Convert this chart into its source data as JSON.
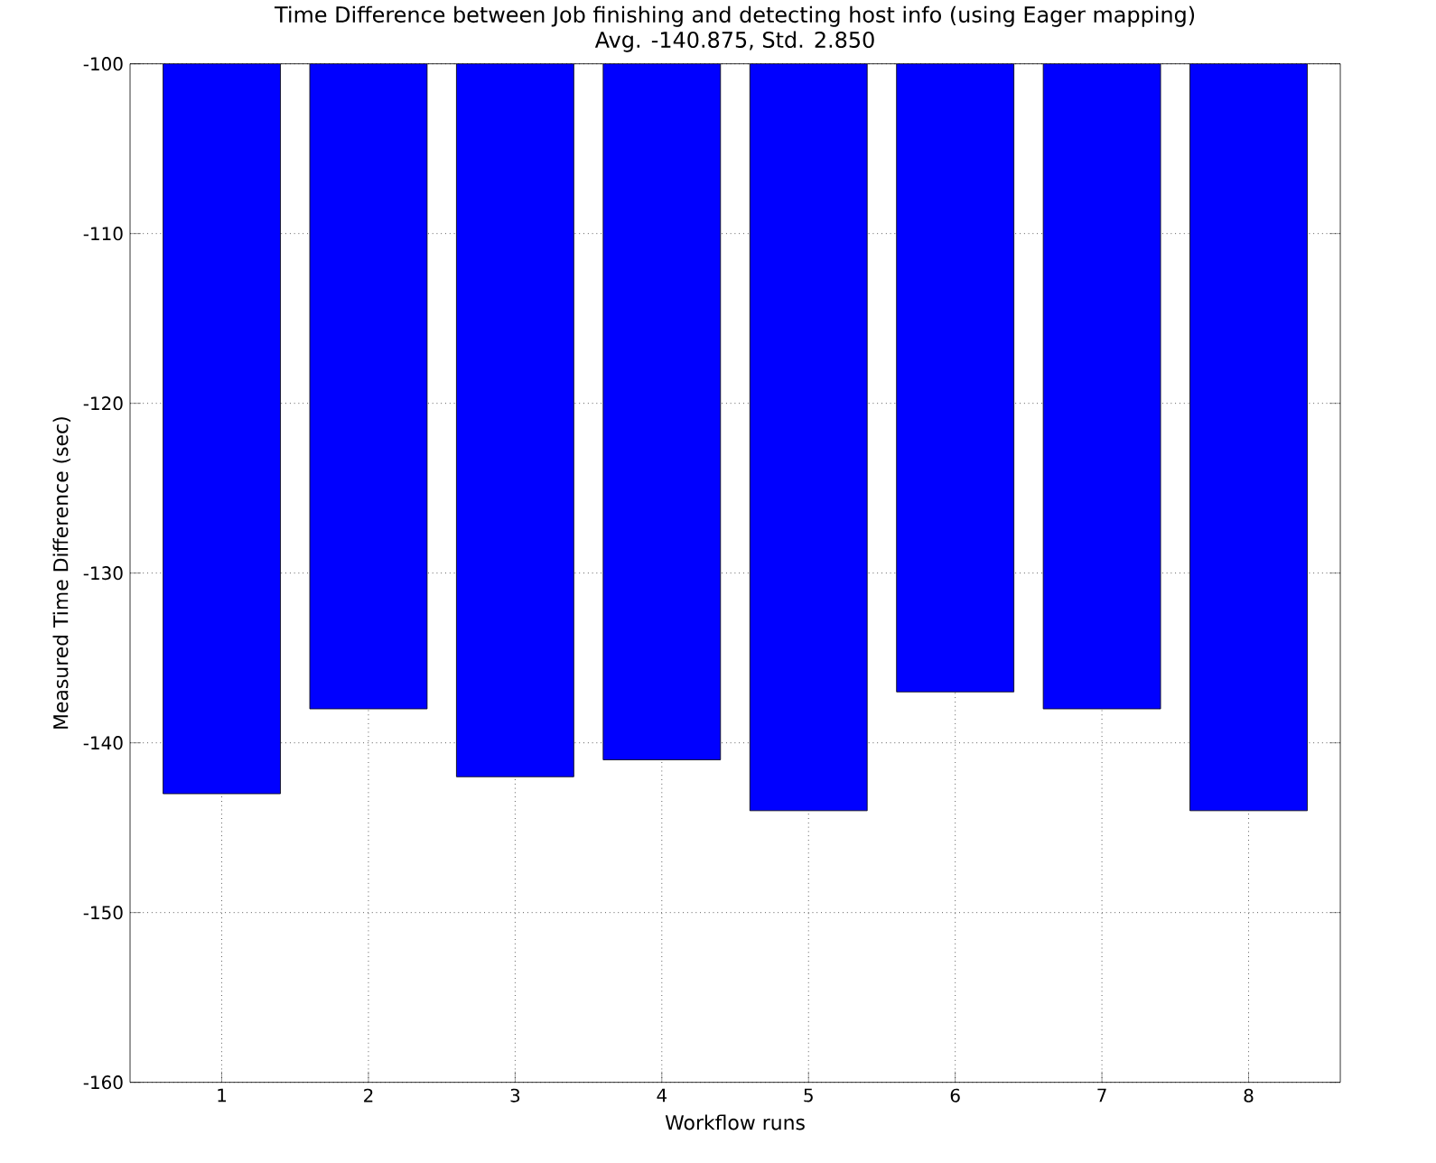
{
  "chart_data": {
    "type": "bar",
    "title": "Time Difference between Job finishing and detecting host info (using Eager mapping)",
    "subtitle": "Avg. -140.875, Std. 2.850",
    "xlabel": "Workflow runs",
    "ylabel": "Measured Time Difference (sec)",
    "categories": [
      "1",
      "2",
      "3",
      "4",
      "5",
      "6",
      "7",
      "8"
    ],
    "values": [
      -143,
      -138,
      -142,
      -141,
      -144,
      -137,
      -138,
      -144
    ],
    "color": "#0000ff",
    "ylim": [
      -160,
      -100
    ],
    "yticks": [
      -160,
      -150,
      -140,
      -130,
      -120,
      -110,
      -100
    ],
    "grid": true
  }
}
